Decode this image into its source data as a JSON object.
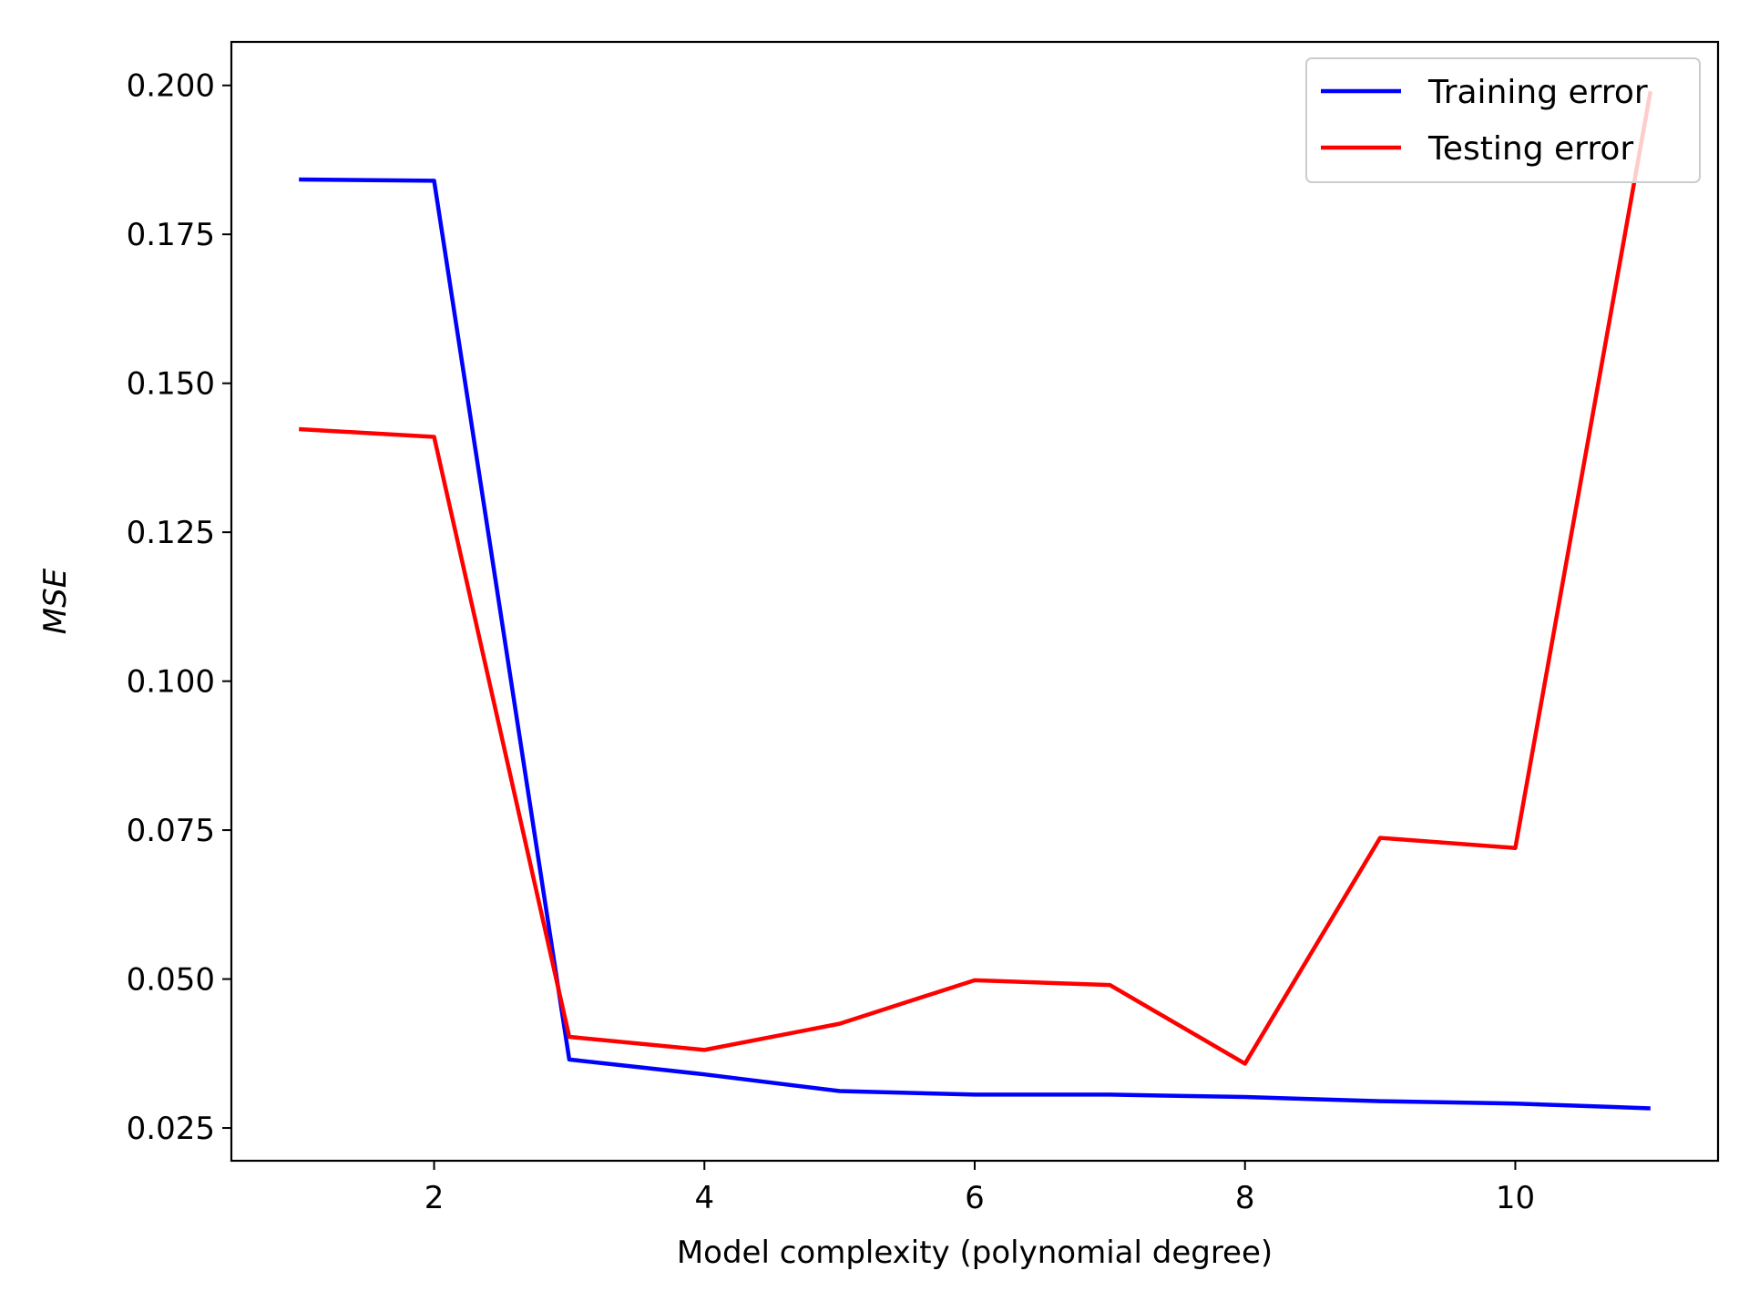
{
  "chart_data": {
    "type": "line",
    "title": "",
    "xlabel": "Model complexity (polynomial degree)",
    "ylabel": "MSE",
    "x": [
      1,
      2,
      3,
      4,
      5,
      6,
      7,
      8,
      9,
      10,
      11
    ],
    "series": [
      {
        "name": "Training error",
        "color": "#0000ff",
        "values": [
          0.1842,
          0.184,
          0.0365,
          0.034,
          0.0312,
          0.0306,
          0.0306,
          0.0302,
          0.0295,
          0.0291,
          0.0283
        ]
      },
      {
        "name": "Testing error",
        "color": "#ff0000",
        "values": [
          0.1423,
          0.141,
          0.0403,
          0.0381,
          0.0425,
          0.0498,
          0.049,
          0.0358,
          0.0737,
          0.072,
          0.199
        ]
      }
    ],
    "xlim": [
      0.5,
      11.5
    ],
    "ylim": [
      0.0195,
      0.2073
    ],
    "xticks": [
      2,
      4,
      6,
      8,
      10
    ],
    "yticks": [
      0.025,
      0.05,
      0.075,
      0.1,
      0.125,
      0.15,
      0.175,
      0.2
    ],
    "ytick_labels": [
      "0.025",
      "0.050",
      "0.075",
      "0.100",
      "0.125",
      "0.150",
      "0.175",
      "0.200"
    ],
    "grid": false,
    "legend_position": "top-right"
  }
}
